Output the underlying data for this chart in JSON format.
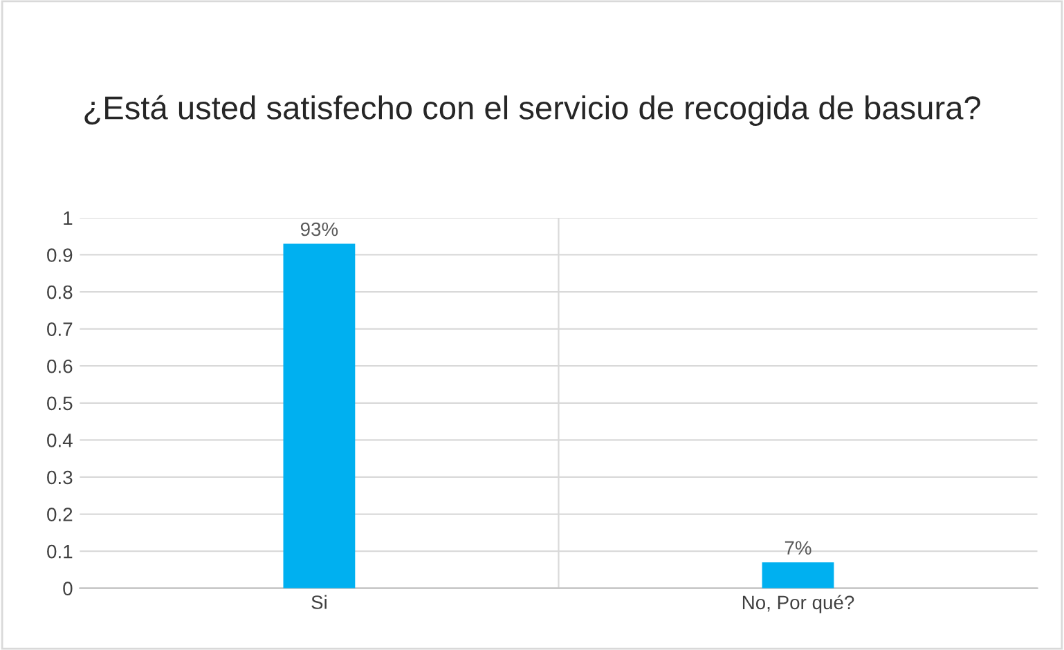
{
  "chart_data": {
    "type": "bar",
    "title": "¿Está usted satisfecho con el servicio de recogida de basura?",
    "categories": [
      "Si",
      "No, Por qué?"
    ],
    "values": [
      0.93,
      0.07
    ],
    "value_labels": [
      "93%",
      "7%"
    ],
    "color": "#00b0f0",
    "ylim": [
      0,
      1
    ],
    "yticks": [
      0,
      0.1,
      0.2,
      0.3,
      0.4,
      0.5,
      0.6,
      0.7,
      0.8,
      0.9,
      1
    ],
    "grid": "y",
    "legend": false
  }
}
